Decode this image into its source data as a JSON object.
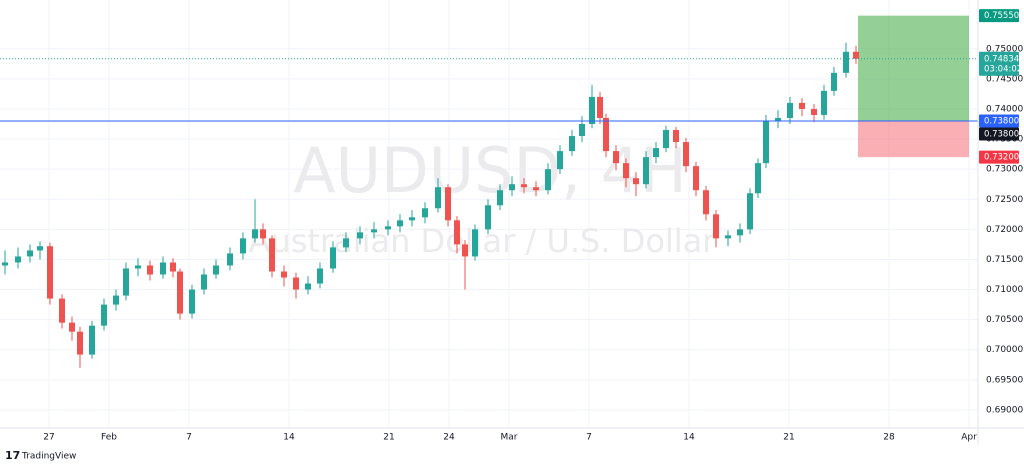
{
  "chart_data": {
    "type": "candlestick",
    "title": "AUDUSD, 4H",
    "subtitle": "Australian Dollar / U.S. Dollar",
    "brand": "TradingView",
    "up_color": "#26a69a",
    "down_color": "#ef5350",
    "grid": true,
    "xlim": [
      -2.45,
      46.45
    ],
    "ylim": [
      0.687,
      0.7581
    ],
    "xticks": [
      {
        "value": 0,
        "label": "27"
      },
      {
        "value": 3,
        "label": "Feb"
      },
      {
        "value": 7,
        "label": "7"
      },
      {
        "value": 12,
        "label": "14"
      },
      {
        "value": 17,
        "label": "21"
      },
      {
        "value": 20,
        "label": "24"
      },
      {
        "value": 23,
        "label": "Mar"
      },
      {
        "value": 27,
        "label": "7"
      },
      {
        "value": 32,
        "label": "14"
      },
      {
        "value": 37,
        "label": "21"
      },
      {
        "value": 42,
        "label": "28"
      },
      {
        "value": 46,
        "label": "Apr"
      }
    ],
    "yticks": [
      {
        "value": 0.75,
        "label": "0.75000"
      },
      {
        "value": 0.745,
        "label": "0.74500"
      },
      {
        "value": 0.74,
        "label": "0.74000"
      },
      {
        "value": 0.735,
        "label": "0.73500"
      },
      {
        "value": 0.73,
        "label": "0.73000"
      },
      {
        "value": 0.725,
        "label": "0.72500"
      },
      {
        "value": 0.72,
        "label": "0.72000"
      },
      {
        "value": 0.715,
        "label": "0.71500"
      },
      {
        "value": 0.71,
        "label": "0.71000"
      },
      {
        "value": 0.705,
        "label": "0.70500"
      },
      {
        "value": 0.7,
        "label": "0.70000"
      },
      {
        "value": 0.695,
        "label": "0.69500"
      },
      {
        "value": 0.69,
        "label": "0.69000"
      }
    ],
    "x": [
      -2.2,
      -1.55,
      -0.95,
      -0.45,
      0.05,
      0.65,
      1.15,
      1.55,
      2.15,
      2.75,
      3.35,
      3.85,
      4.45,
      5.05,
      5.7,
      6.2,
      6.55,
      7.15,
      7.75,
      8.35,
      9.05,
      9.7,
      10.3,
      10.7,
      11.15,
      11.75,
      12.35,
      12.95,
      13.55,
      14.2,
      14.85,
      15.55,
      16.25,
      16.95,
      17.55,
      18.15,
      18.8,
      19.45,
      19.95,
      20.4,
      20.8,
      21.3,
      21.95,
      22.55,
      23.15,
      23.75,
      24.35,
      24.95,
      25.55,
      26.15,
      26.65,
      27.15,
      27.55,
      27.85,
      28.35,
      28.85,
      29.35,
      29.85,
      30.35,
      30.85,
      31.35,
      31.85,
      32.35,
      32.85,
      33.35,
      33.95,
      34.55,
      35.05,
      35.45,
      35.85,
      36.45,
      37.05,
      37.65,
      38.25,
      38.75,
      39.25,
      39.85,
      40.35
    ],
    "open": [
      0.714,
      0.7145,
      0.7155,
      0.7165,
      0.7172,
      0.7085,
      0.7045,
      0.703,
      0.6992,
      0.704,
      0.7075,
      0.709,
      0.7135,
      0.714,
      0.7125,
      0.7145,
      0.713,
      0.706,
      0.71,
      0.7125,
      0.714,
      0.716,
      0.7185,
      0.72,
      0.7185,
      0.713,
      0.712,
      0.71,
      0.711,
      0.7135,
      0.717,
      0.7185,
      0.7195,
      0.72,
      0.7205,
      0.7215,
      0.722,
      0.7235,
      0.727,
      0.7215,
      0.7175,
      0.7155,
      0.72,
      0.724,
      0.7265,
      0.7275,
      0.727,
      0.7265,
      0.73,
      0.733,
      0.7355,
      0.7375,
      0.742,
      0.7385,
      0.733,
      0.731,
      0.7285,
      0.7275,
      0.732,
      0.7335,
      0.7365,
      0.7345,
      0.7305,
      0.7265,
      0.7225,
      0.7185,
      0.719,
      0.72,
      0.726,
      0.731,
      0.738,
      0.7385,
      0.741,
      0.74,
      0.739,
      0.743,
      0.746,
      0.7495
    ],
    "high": [
      0.7165,
      0.717,
      0.7175,
      0.718,
      0.7178,
      0.7092,
      0.7055,
      0.7038,
      0.7048,
      0.7085,
      0.71,
      0.7145,
      0.7152,
      0.7148,
      0.7155,
      0.7152,
      0.7135,
      0.7108,
      0.7135,
      0.715,
      0.717,
      0.7195,
      0.725,
      0.721,
      0.719,
      0.714,
      0.7128,
      0.7122,
      0.7145,
      0.718,
      0.7195,
      0.7205,
      0.7212,
      0.7215,
      0.7225,
      0.7232,
      0.7245,
      0.7285,
      0.7275,
      0.7222,
      0.7182,
      0.7208,
      0.725,
      0.7275,
      0.7288,
      0.7285,
      0.728,
      0.731,
      0.734,
      0.7365,
      0.7388,
      0.744,
      0.7428,
      0.7392,
      0.734,
      0.7318,
      0.7295,
      0.733,
      0.7345,
      0.7372,
      0.737,
      0.7352,
      0.7312,
      0.7272,
      0.7232,
      0.7198,
      0.721,
      0.7268,
      0.7318,
      0.739,
      0.7398,
      0.742,
      0.7418,
      0.7408,
      0.744,
      0.747,
      0.751,
      0.7505
    ],
    "low": [
      0.7125,
      0.7135,
      0.7145,
      0.715,
      0.7075,
      0.7035,
      0.7015,
      0.697,
      0.6985,
      0.7032,
      0.7065,
      0.7082,
      0.7122,
      0.7115,
      0.7118,
      0.712,
      0.705,
      0.7052,
      0.7092,
      0.7118,
      0.7132,
      0.715,
      0.7178,
      0.7175,
      0.712,
      0.7105,
      0.7085,
      0.7092,
      0.7102,
      0.7128,
      0.7162,
      0.7175,
      0.7185,
      0.719,
      0.7195,
      0.7205,
      0.721,
      0.7228,
      0.7205,
      0.716,
      0.71,
      0.7148,
      0.7192,
      0.7232,
      0.7255,
      0.726,
      0.7255,
      0.7258,
      0.7292,
      0.7322,
      0.7345,
      0.7368,
      0.7375,
      0.732,
      0.7298,
      0.727,
      0.7255,
      0.7268,
      0.731,
      0.7328,
      0.7335,
      0.7295,
      0.7255,
      0.7215,
      0.717,
      0.7172,
      0.7178,
      0.7192,
      0.7252,
      0.7302,
      0.7368,
      0.7375,
      0.7388,
      0.7378,
      0.7382,
      0.7422,
      0.7452,
      0.7475
    ],
    "close": [
      0.7145,
      0.7155,
      0.7165,
      0.7172,
      0.7085,
      0.7045,
      0.703,
      0.6992,
      0.704,
      0.7075,
      0.709,
      0.7135,
      0.714,
      0.7125,
      0.7145,
      0.713,
      0.706,
      0.71,
      0.7125,
      0.714,
      0.716,
      0.7185,
      0.72,
      0.7185,
      0.713,
      0.712,
      0.71,
      0.711,
      0.7135,
      0.717,
      0.7185,
      0.7195,
      0.72,
      0.7205,
      0.7215,
      0.722,
      0.7235,
      0.727,
      0.7215,
      0.7175,
      0.7155,
      0.72,
      0.724,
      0.7265,
      0.7275,
      0.727,
      0.7265,
      0.73,
      0.733,
      0.7355,
      0.7375,
      0.742,
      0.7385,
      0.733,
      0.731,
      0.7285,
      0.7275,
      0.732,
      0.7335,
      0.7365,
      0.7345,
      0.7305,
      0.7265,
      0.7225,
      0.7185,
      0.719,
      0.72,
      0.726,
      0.731,
      0.738,
      0.7385,
      0.741,
      0.74,
      0.739,
      0.743,
      0.746,
      0.7495,
      0.74834
    ],
    "position": {
      "x_start": 40.45,
      "x_end": 46,
      "target": {
        "value": 0.7555,
        "label": "0.75550"
      },
      "entry": {
        "value": 0.738,
        "label": "0.73800"
      },
      "stop": {
        "value": 0.732,
        "label": "0.73200"
      }
    },
    "last_price": {
      "value": 0.74834,
      "label": "0.74834",
      "countdown": "03:04:02"
    }
  }
}
